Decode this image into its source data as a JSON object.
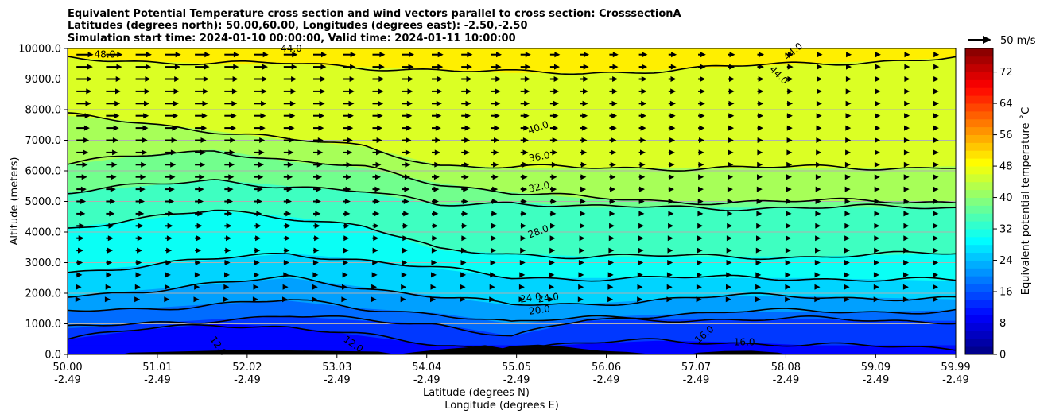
{
  "chart_data": {
    "type": "filled-contour cross section with contour lines and wind vectors",
    "title_lines": [
      "Equivalent Potential Temperature cross section and wind vectors parallel to cross section: CrosssectionA",
      "Latitudes (degrees north): 50.00,60.00, Longitudes (degrees east): -2.50,-2.50",
      "Simulation start time: 2024-01-10 00:00:00, Valid time: 2024-01-11 10:00:00"
    ],
    "ylabel": "Altitude (meters)",
    "xlabel_lines": [
      "Latitude (degrees N)",
      "Longitude (degrees E)"
    ],
    "ylim": [
      0,
      10000
    ],
    "yticks": [
      "0.0",
      "1000.0",
      "2000.0",
      "3000.0",
      "4000.0",
      "5000.0",
      "6000.0",
      "7000.0",
      "8000.0",
      "9000.0",
      "10000.0"
    ],
    "xticks_lat": [
      "50.00",
      "51.01",
      "52.02",
      "53.03",
      "54.04",
      "55.05",
      "56.06",
      "57.07",
      "58.08",
      "59.09",
      "59.99"
    ],
    "xticks_lon": [
      "-2.49",
      "-2.49",
      "-2.49",
      "-2.49",
      "-2.49",
      "-2.49",
      "-2.49",
      "-2.49",
      "-2.49",
      "-2.49",
      "-2.49"
    ],
    "xlim": [
      50.0,
      59.99
    ],
    "colorbar": {
      "label": "Equivalent potential temperature ˚C",
      "ticks": [
        "0",
        "8",
        "16",
        "24",
        "32",
        "40",
        "48",
        "56",
        "64",
        "72"
      ],
      "range": [
        0,
        78
      ],
      "step": 2
    },
    "quiver_key": "50 m/s",
    "grid": "horizontal",
    "contour_levels": [
      {
        "value": "12.0",
        "altitudes_m": [
          500,
          800,
          1000,
          900,
          600,
          300,
          200,
          350,
          450,
          400,
          300,
          250,
          200
        ]
      },
      {
        "value": "16.0",
        "altitudes_m": [
          850,
          1000,
          1150,
          1250,
          1100,
          1000,
          600,
          1100,
          1150,
          1150,
          1150,
          1100,
          1100
        ]
      },
      {
        "value": "20.0",
        "altitudes_m": [
          1400,
          1500,
          1650,
          1750,
          1500,
          1350,
          1000,
          1200,
          1300,
          1400,
          1400,
          1400,
          1450
        ]
      },
      {
        "value": "24.0",
        "altitudes_m": [
          1900,
          2100,
          2300,
          2500,
          2200,
          1900,
          1600,
          1650,
          1800,
          1900,
          1900,
          1850,
          1800
        ]
      },
      {
        "value": "28.0",
        "altitudes_m": [
          2700,
          2900,
          3100,
          3300,
          3100,
          2800,
          2500,
          2500,
          2500,
          2500,
          2500,
          2450,
          2400
        ]
      },
      {
        "value": "32.0",
        "altitudes_m": [
          4150,
          4400,
          4700,
          4500,
          4200,
          3400,
          3300,
          3200,
          3200,
          3200,
          3200,
          3250,
          3300
        ]
      },
      {
        "value": "36.0",
        "altitudes_m": [
          5300,
          5500,
          5700,
          5500,
          5300,
          4900,
          5000,
          4800,
          4800,
          4800,
          4800,
          4800,
          4800
        ]
      },
      {
        "value": "40.0",
        "altitudes_m": [
          6200,
          6500,
          6700,
          6300,
          6100,
          5600,
          5300,
          5100,
          5000,
          5000,
          5000,
          5000,
          5000
        ]
      },
      {
        "value": "44.0",
        "altitudes_m": [
          7800,
          7600,
          7300,
          7000,
          6800,
          6200,
          6100,
          6100,
          6100,
          6100,
          6100,
          6100,
          6150
        ]
      },
      {
        "value": "48.0",
        "altitudes_m": [
          9700,
          9600,
          9500,
          9500,
          9400,
          9300,
          9200,
          9200,
          9300,
          9400,
          9500,
          9600,
          9700
        ]
      }
    ],
    "contour_label_texts": [
      "40.0",
      "36.0",
      "32.0",
      "28.0",
      "24.0",
      "24.0",
      "20.0",
      "12.0",
      "12.0",
      "16.0",
      "16.0",
      "44.0",
      "44.0",
      "48.0",
      "44.0"
    ]
  }
}
